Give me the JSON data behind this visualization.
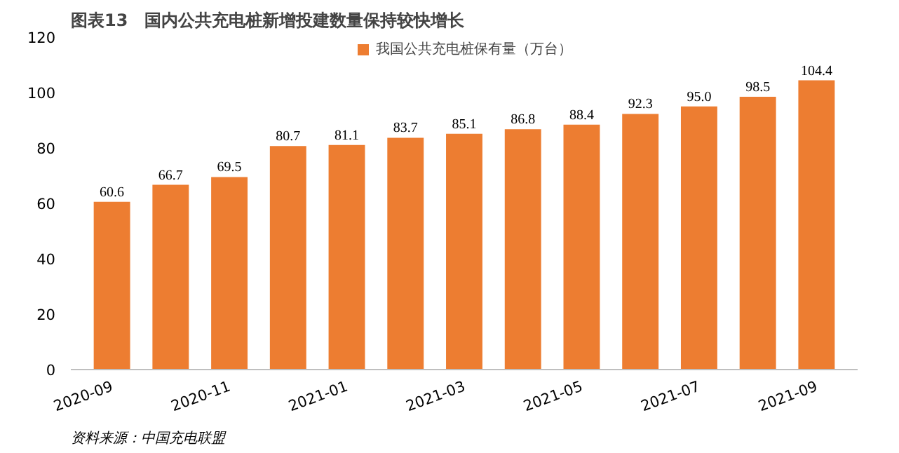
{
  "chart_data": {
    "type": "bar",
    "title": "图表13　国内公共充电桩新增投建数量保持较快增长",
    "categories": [
      "2020-09",
      null,
      "2020-11",
      null,
      "2021-01",
      null,
      "2021-03",
      null,
      "2021-05",
      null,
      "2021-07",
      null,
      "2021-09"
    ],
    "series": [
      {
        "name": "我国公共充电桩保有量（万台）",
        "color": "#ed7d31",
        "values": [
          60.6,
          66.7,
          69.5,
          80.7,
          81.1,
          83.7,
          85.1,
          86.8,
          88.4,
          92.3,
          95.0,
          98.5,
          104.4
        ]
      }
    ],
    "value_labels": [
      "60.6",
      "66.7",
      "69.5",
      "80.7",
      "81.1",
      "83.7",
      "85.1",
      "86.8",
      "88.4",
      "92.3",
      "95.0",
      "98.5",
      "104.4"
    ],
    "ylim": [
      0,
      120
    ],
    "yticks": [
      0,
      20,
      40,
      60,
      80,
      100,
      120
    ],
    "grid": false,
    "legend": "top",
    "annotations": [
      "资料来源：中国充电联盟"
    ]
  }
}
